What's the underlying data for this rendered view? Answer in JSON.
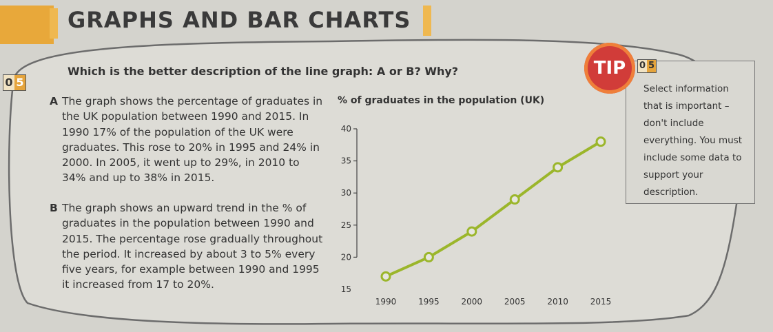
{
  "section_title": "GRAPHS AND BAR CHARTS",
  "question": {
    "number_digits": [
      "0",
      "5"
    ],
    "text": "Which is the better description of the line graph: A or B? Why?"
  },
  "options": [
    {
      "letter": "A",
      "text": "The graph shows the percentage of graduates in the UK population between 1990 and 2015. In 1990 17% of the population of the UK were graduates. This rose to 20% in 1995 and 24% in 2000. In 2005, it went up to 29%, in 2010 to 34% and up to 38% in 2015."
    },
    {
      "letter": "B",
      "text": "The graph shows an upward trend in the % of graduates in the population between 1990 and 2015. The percentage rose gradually throughout the period. It increased by about 3 to 5% every five years, for example between 1990 and 1995 it increased from 17 to 20%."
    }
  ],
  "tip": {
    "badge": "TIP",
    "number_digits": [
      "0",
      "5"
    ],
    "text": "Select information that is important – don't include everything. You must include some data to support your description."
  },
  "colors": {
    "accent_orange": "#e5a43c",
    "tip_red": "#d13c39",
    "line_green": "#9bb62b",
    "background": "#d4d3cd"
  },
  "chart_data": {
    "type": "line",
    "title": "% of graduates in the population (UK)",
    "x": [
      1990,
      1995,
      2000,
      2005,
      2010,
      2015
    ],
    "series": [
      {
        "values": [
          17,
          20,
          24,
          29,
          34,
          38
        ]
      }
    ],
    "ylim": [
      15,
      40
    ],
    "yticks": [
      15,
      20,
      25,
      30,
      35,
      40
    ],
    "xlabel": "",
    "ylabel": "",
    "grid": false
  }
}
